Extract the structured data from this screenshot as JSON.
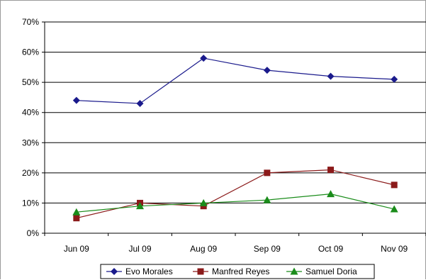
{
  "chart_data": {
    "type": "line",
    "title": "",
    "xlabel": "",
    "ylabel": "",
    "categories": [
      "Jun 09",
      "Jul 09",
      "Aug 09",
      "Sep 09",
      "Oct 09",
      "Nov 09"
    ],
    "ylim": [
      0,
      70
    ],
    "yticks": [
      "0%",
      "10%",
      "20%",
      "30%",
      "40%",
      "50%",
      "60%",
      "70%"
    ],
    "grid": true,
    "legend": "bottom",
    "series": [
      {
        "name": "Evo Morales",
        "color": "#1a1a8c",
        "marker": "diamond",
        "values": [
          44,
          43,
          58,
          54,
          52,
          51
        ]
      },
      {
        "name": "Manfred Reyes",
        "color": "#8b1a1a",
        "marker": "square",
        "values": [
          5,
          10,
          9,
          20,
          21,
          16
        ]
      },
      {
        "name": "Samuel Doria",
        "color": "#1a8c1a",
        "marker": "triangle",
        "values": [
          7,
          9,
          10,
          11,
          13,
          8
        ]
      }
    ]
  }
}
